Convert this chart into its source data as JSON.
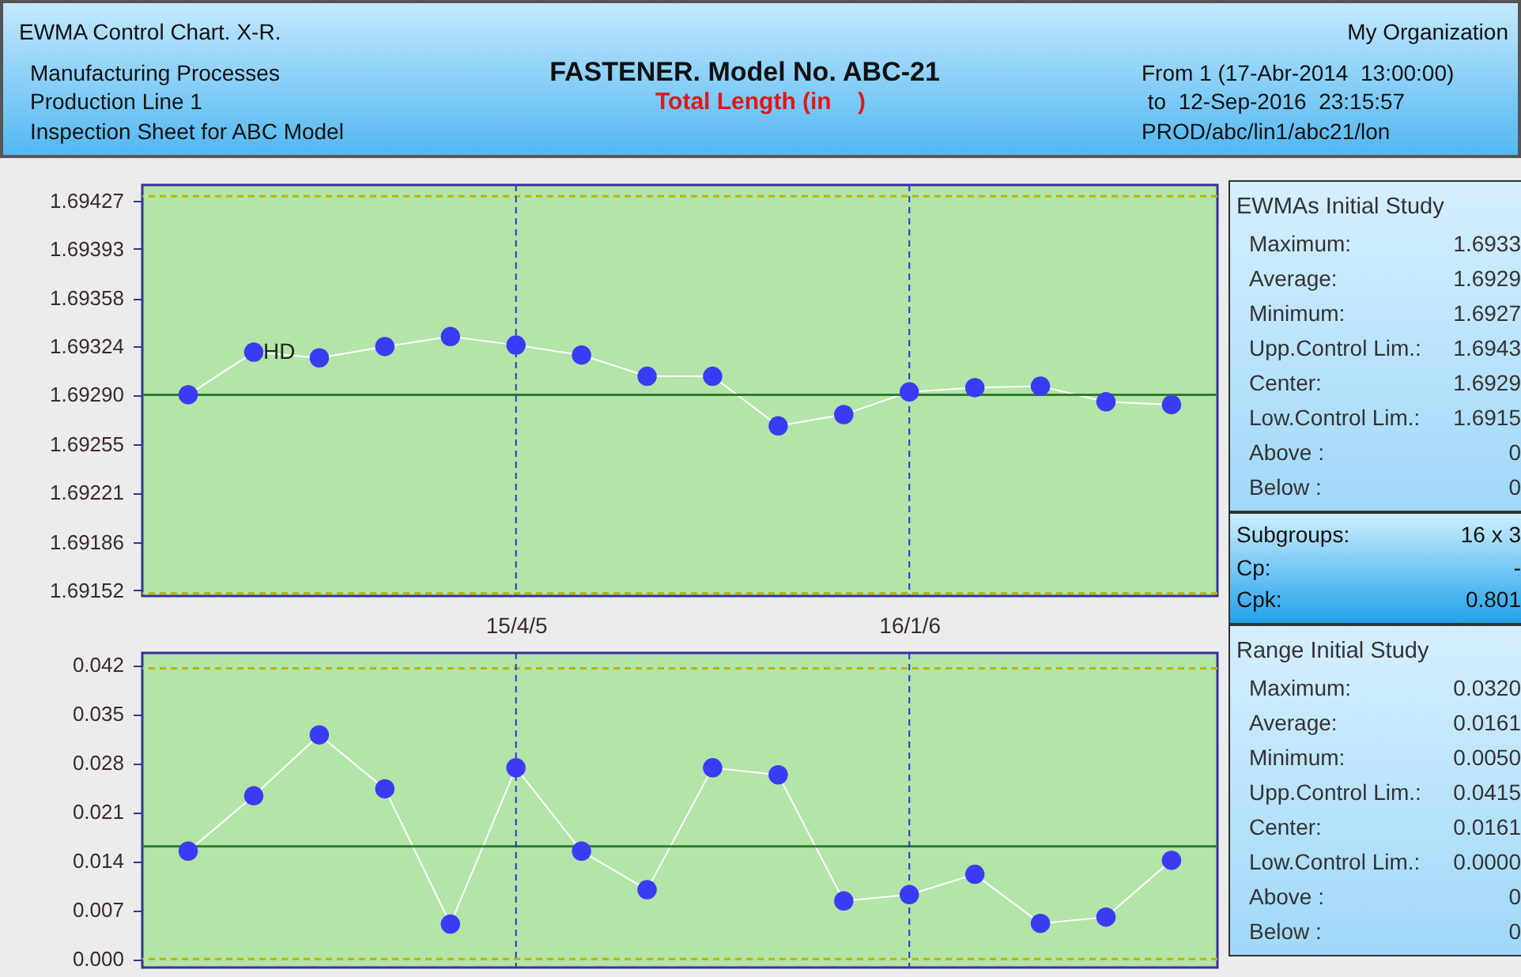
{
  "chart_data": [
    {
      "type": "line",
      "title": "FASTENER. Model No. ABC-21",
      "subtitle": "Total Length (in    )",
      "annotations": [
        "EWMA Control Chart. X-R.",
        "Manufacturing Processes",
        "Production Line 1",
        "Inspection Sheet for ABC Model",
        "My Organization",
        "From 1 (17-Abr-2014  13:00:00)",
        " to  12-Sep-2016  23:15:57",
        "PROD/abc/lin1/abc21/lon",
        {
          "text": "HD",
          "y": 1.6932
        }
      ],
      "categories": [
        null,
        null,
        null,
        null,
        null,
        "15/4/5",
        null,
        null,
        null,
        null,
        null,
        "16/1/6",
        null,
        null,
        null,
        null
      ],
      "series": [
        {
          "color": "#3b3bf5",
          "values": [
            1.6929,
            1.6932,
            1.69316,
            1.69324,
            1.69331,
            1.69325,
            1.69318,
            1.69303,
            1.69303,
            1.69268,
            1.69276,
            1.69292,
            1.69295,
            1.69296,
            1.69285,
            1.69283
          ]
        }
      ],
      "ylim": [
        1.69148,
        1.69438
      ],
      "yticks": [
        1.69152,
        1.69186,
        1.69221,
        1.69255,
        {
          "value": 1.6929,
          "label": "1.69290"
        },
        1.69324,
        1.69358,
        1.69393,
        1.69427
      ],
      "ref_lines": [
        {
          "axis": "y",
          "value": 1.6943,
          "color": "#b8b800",
          "line_style": "dashed"
        },
        {
          "axis": "y",
          "value": 1.6929,
          "color": "#2e7d2e",
          "line_style": "solid"
        },
        {
          "axis": "y",
          "value": 1.6915,
          "color": "#b8b800",
          "line_style": "dashed"
        },
        {
          "axis": "x",
          "value": "15/4/5",
          "color": "#3333cc",
          "line_style": "dashed"
        },
        {
          "axis": "x",
          "value": "16/1/6",
          "color": "#3333cc",
          "line_style": "dashed"
        }
      ],
      "marker": "circle"
    },
    {
      "type": "line",
      "categories": [
        null,
        null,
        null,
        null,
        null,
        "15/4/5",
        null,
        null,
        null,
        null,
        null,
        "16/1/6",
        null,
        null,
        null,
        null
      ],
      "series": [
        {
          "color": "#3b3bf5",
          "values": [
            0.0154,
            0.0233,
            0.032,
            0.0243,
            0.005,
            0.0273,
            0.0154,
            0.0099,
            0.0273,
            0.0263,
            0.0083,
            0.0092,
            0.0121,
            0.0051,
            0.006,
            0.0141
          ]
        }
      ],
      "ylim": [
        -0.0012,
        0.0437
      ],
      "yticks": [
        {
          "value": 0,
          "label": "0.000"
        },
        0.007,
        0.014,
        0.021,
        0.028,
        0.035,
        0.042
      ],
      "ref_lines": [
        {
          "axis": "y",
          "value": 0.0415,
          "color": "#b8b800",
          "line_style": "dashed"
        },
        {
          "axis": "y",
          "value": 0.0161,
          "color": "#2e7d2e",
          "line_style": "solid"
        },
        {
          "axis": "y",
          "value": 0,
          "color": "#b8b800",
          "line_style": "dashed"
        },
        {
          "axis": "x",
          "value": "15/4/5",
          "color": "#3333cc",
          "line_style": "dashed"
        },
        {
          "axis": "x",
          "value": "16/1/6",
          "color": "#3333cc",
          "line_style": "dashed"
        }
      ],
      "marker": "circle",
      "tick_labels": "y"
    },
    {
      "type": "other",
      "title": "EWMAs Initial Study",
      "annotations": [
        "Maximum:",
        "1.6933",
        "Average:",
        "1.6929",
        "Minimum:",
        "1.6927",
        "Upp.Control Lim.:",
        "1.6943",
        "Center:",
        "1.6929",
        "Low.Control Lim.:",
        "1.6915",
        "Above :",
        "0",
        "Below :",
        "0"
      ]
    },
    {
      "type": "other",
      "annotations": [
        "Subgroups:",
        "16 x 3",
        "Cp:",
        "-",
        "Cpk:",
        "0.801"
      ]
    },
    {
      "type": "other",
      "title": "Range Initial Study",
      "annotations": [
        "Maximum:",
        "0.0320",
        "Average:",
        "0.0161",
        "Minimum:",
        "0.0050",
        "Upp.Control Lim.:",
        "0.0415",
        "Center:",
        "0.0161",
        "Low.Control Lim.:",
        "0.0000",
        "Above :",
        "0",
        "Below :",
        "0"
      ]
    }
  ]
}
